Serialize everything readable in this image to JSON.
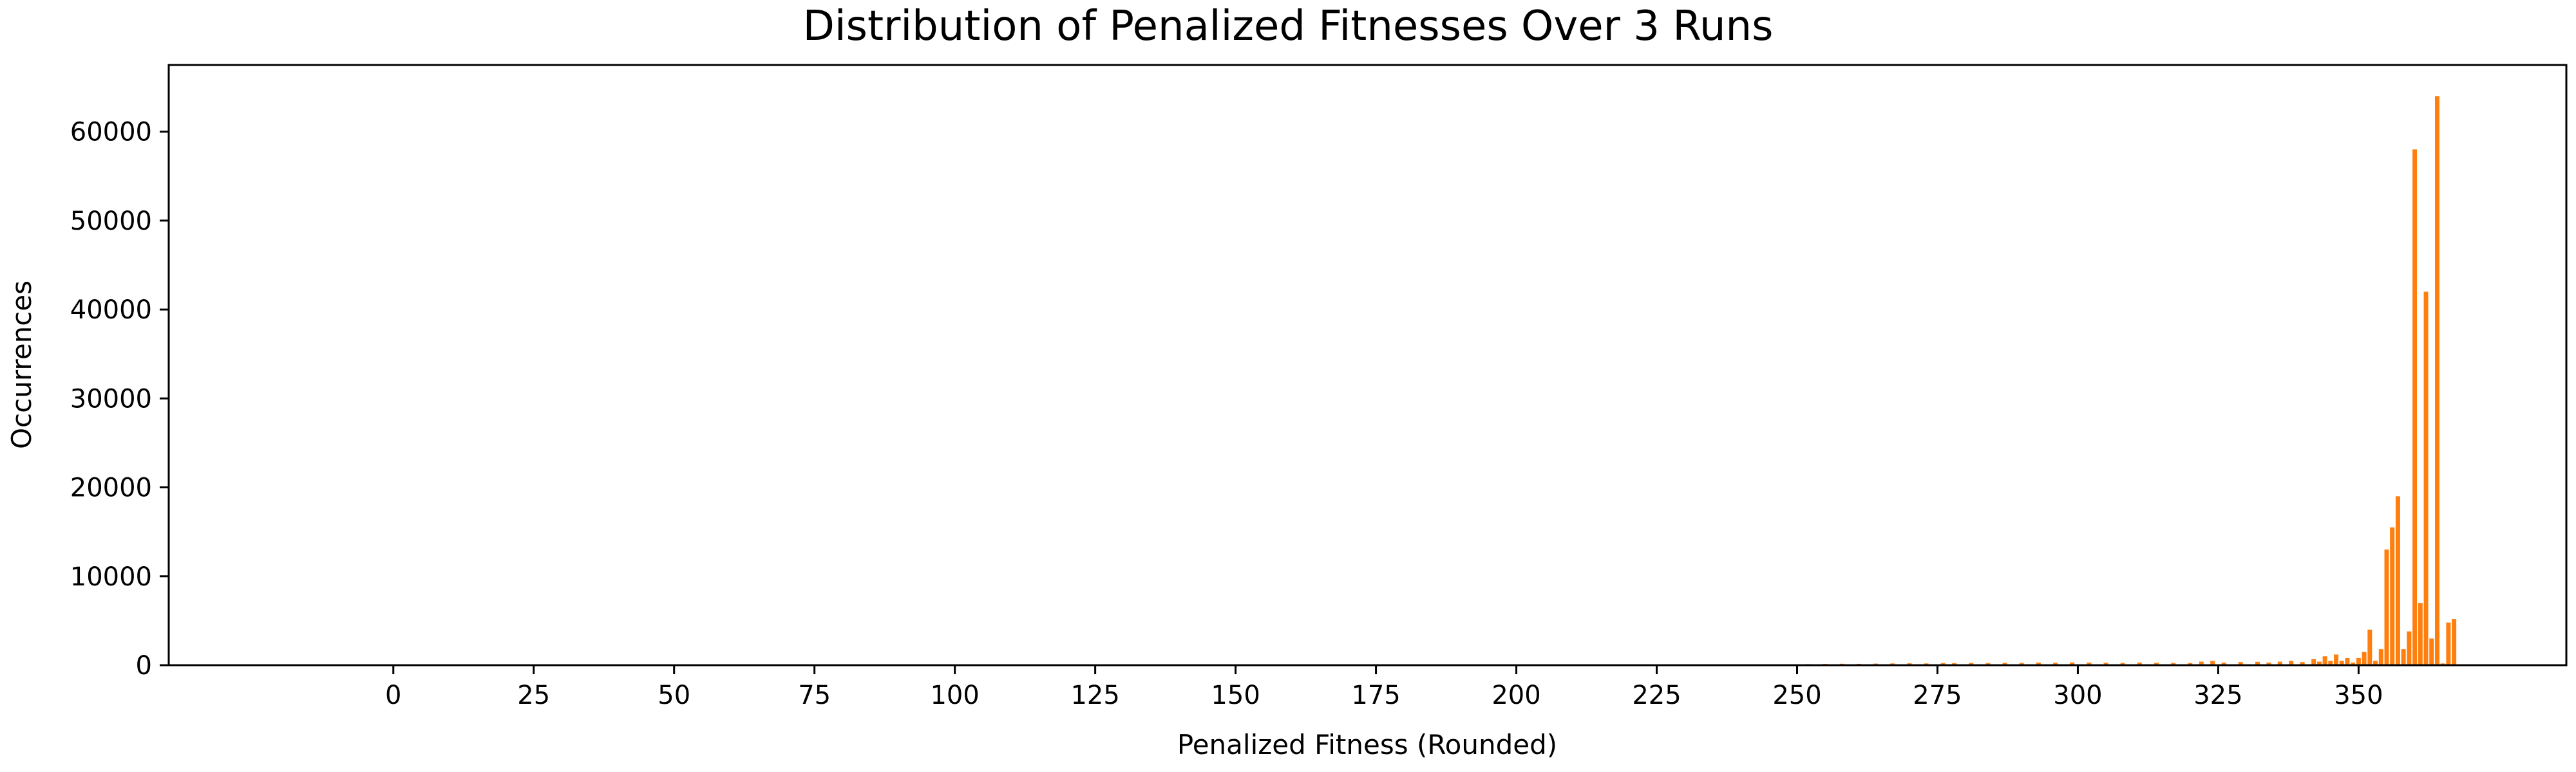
{
  "chart_data": {
    "type": "bar",
    "title": "Distribution of Penalized Fitnesses Over 3 Runs",
    "xlabel": "Penalized Fitness (Rounded)",
    "ylabel": "Occurrences",
    "xlim": [
      -40,
      387
    ],
    "ylim": [
      0,
      67500
    ],
    "xticks": [
      0,
      25,
      50,
      75,
      100,
      125,
      150,
      175,
      200,
      225,
      250,
      275,
      300,
      325,
      350
    ],
    "yticks": [
      0,
      10000,
      20000,
      30000,
      40000,
      50000,
      60000
    ],
    "grid": false,
    "legend": "none",
    "bar_color": "#ff7f0e",
    "series": [
      {
        "x": [
          205,
          215,
          222,
          228,
          233,
          238,
          243,
          248,
          252,
          255,
          258,
          261,
          264,
          267,
          270,
          273,
          276,
          278,
          281,
          284,
          287,
          290,
          293,
          296,
          299,
          302,
          305,
          308,
          311,
          314,
          317,
          320,
          322,
          324,
          326,
          329,
          332,
          334,
          336,
          338,
          340,
          342,
          343,
          344,
          345,
          346,
          347,
          348,
          349,
          350,
          351,
          352,
          353,
          354,
          355,
          356,
          357,
          358,
          359,
          360,
          361,
          362,
          363,
          364,
          365,
          366,
          367
        ],
        "values": [
          30,
          40,
          50,
          60,
          70,
          80,
          90,
          100,
          120,
          140,
          160,
          150,
          180,
          200,
          220,
          200,
          250,
          230,
          260,
          240,
          280,
          260,
          300,
          280,
          320,
          300,
          280,
          260,
          300,
          280,
          260,
          250,
          400,
          500,
          300,
          350,
          380,
          300,
          400,
          500,
          350,
          700,
          400,
          1000,
          500,
          1200,
          500,
          800,
          300,
          800,
          1500,
          4000,
          500,
          1800,
          13000,
          15500,
          19000,
          1800,
          3800,
          58000,
          7000,
          42000,
          3000,
          64000,
          200,
          4800,
          5200
        ]
      }
    ]
  }
}
